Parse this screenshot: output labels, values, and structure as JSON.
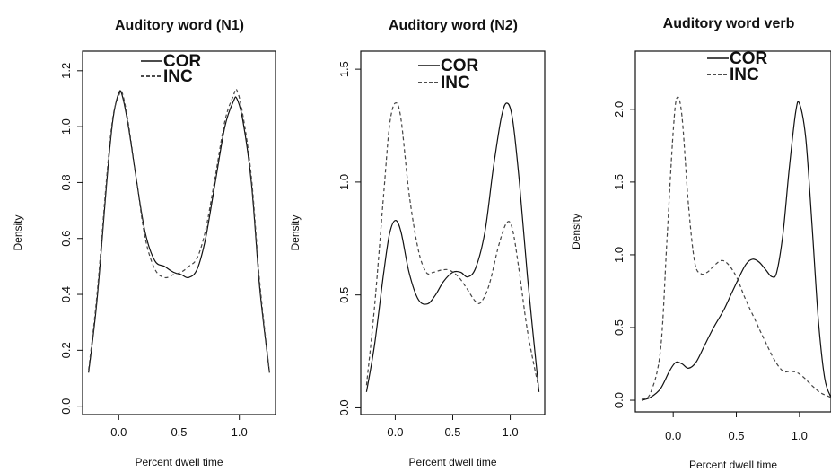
{
  "chart_data": [
    {
      "type": "line",
      "title": "Auditory word (N1)",
      "xlabel": "Percent dwell time",
      "ylabel": "Density",
      "xlim": [
        -0.3,
        1.3
      ],
      "ylim": [
        -0.03,
        1.27
      ],
      "xticks": [
        0.0,
        0.5,
        1.0
      ],
      "xtick_labels": [
        "0.0",
        "0.5",
        "1.0"
      ],
      "yticks": [
        0.0,
        0.2,
        0.4,
        0.6,
        0.8,
        1.0,
        1.2
      ],
      "ytick_labels": [
        "0.0",
        "0.2",
        "0.4",
        "0.6",
        "0.8",
        "1.0",
        "1.2"
      ],
      "grid": false,
      "legend_position": "top-center",
      "series": [
        {
          "name": "COR",
          "style": "solid",
          "color": "#111111",
          "x": [
            -0.25,
            -0.18,
            -0.1,
            -0.05,
            0.0,
            0.03,
            0.08,
            0.15,
            0.22,
            0.3,
            0.38,
            0.45,
            0.52,
            0.58,
            0.65,
            0.72,
            0.8,
            0.88,
            0.95,
            0.98,
            1.03,
            1.1,
            1.17,
            1.25
          ],
          "y": [
            0.12,
            0.38,
            0.8,
            1.02,
            1.12,
            1.11,
            1.0,
            0.8,
            0.62,
            0.52,
            0.5,
            0.48,
            0.47,
            0.46,
            0.49,
            0.6,
            0.8,
            1.0,
            1.09,
            1.1,
            1.02,
            0.8,
            0.42,
            0.12
          ]
        },
        {
          "name": "INC",
          "style": "dashed",
          "color": "#444444",
          "x": [
            -0.25,
            -0.18,
            -0.1,
            -0.05,
            0.0,
            0.03,
            0.08,
            0.15,
            0.22,
            0.3,
            0.38,
            0.45,
            0.52,
            0.58,
            0.65,
            0.72,
            0.8,
            0.88,
            0.95,
            0.98,
            1.03,
            1.1,
            1.17,
            1.25
          ],
          "y": [
            0.13,
            0.4,
            0.82,
            1.03,
            1.11,
            1.12,
            1.01,
            0.8,
            0.6,
            0.49,
            0.46,
            0.47,
            0.48,
            0.5,
            0.53,
            0.63,
            0.82,
            1.02,
            1.11,
            1.13,
            1.04,
            0.82,
            0.44,
            0.12
          ]
        }
      ]
    },
    {
      "type": "line",
      "title": "Auditory word (N2)",
      "xlabel": "Percent dwell time",
      "ylabel": "Density",
      "xlim": [
        -0.3,
        1.3
      ],
      "ylim": [
        -0.03,
        1.58
      ],
      "xticks": [
        0.0,
        0.5,
        1.0
      ],
      "xtick_labels": [
        "0.0",
        "0.5",
        "1.0"
      ],
      "yticks": [
        0.0,
        0.5,
        1.0,
        1.5
      ],
      "ytick_labels": [
        "0.0",
        "0.5",
        "1.0",
        "1.5"
      ],
      "grid": false,
      "legend_position": "top-center",
      "series": [
        {
          "name": "COR",
          "style": "solid",
          "color": "#111111",
          "x": [
            -0.25,
            -0.18,
            -0.1,
            -0.05,
            0.0,
            0.05,
            0.12,
            0.2,
            0.28,
            0.35,
            0.42,
            0.5,
            0.57,
            0.63,
            0.7,
            0.78,
            0.85,
            0.92,
            0.97,
            1.02,
            1.08,
            1.15,
            1.25
          ],
          "y": [
            0.07,
            0.28,
            0.6,
            0.77,
            0.83,
            0.78,
            0.6,
            0.48,
            0.46,
            0.5,
            0.56,
            0.6,
            0.6,
            0.58,
            0.62,
            0.78,
            1.05,
            1.28,
            1.35,
            1.28,
            1.0,
            0.58,
            0.07
          ]
        },
        {
          "name": "INC",
          "style": "dashed",
          "color": "#444444",
          "x": [
            -0.25,
            -0.18,
            -0.1,
            -0.05,
            0.0,
            0.05,
            0.12,
            0.2,
            0.27,
            0.33,
            0.4,
            0.47,
            0.55,
            0.62,
            0.7,
            0.75,
            0.82,
            0.9,
            0.97,
            1.02,
            1.08,
            1.15,
            1.25
          ],
          "y": [
            0.1,
            0.45,
            0.95,
            1.25,
            1.35,
            1.28,
            0.95,
            0.7,
            0.6,
            0.6,
            0.61,
            0.61,
            0.58,
            0.53,
            0.47,
            0.47,
            0.55,
            0.72,
            0.82,
            0.79,
            0.6,
            0.34,
            0.08
          ]
        }
      ]
    },
    {
      "type": "line",
      "title": "Auditory word verb",
      "xlabel": "Percent dwell time",
      "ylabel": "Density",
      "xlim": [
        -0.3,
        1.25
      ],
      "ylim": [
        -0.08,
        2.4
      ],
      "xticks": [
        0.0,
        0.5,
        1.0
      ],
      "xtick_labels": [
        "0.0",
        "0.5",
        "1.0"
      ],
      "yticks": [
        0.0,
        0.5,
        1.0,
        1.5,
        2.0
      ],
      "ytick_labels": [
        "0.0",
        "0.5",
        "1.0",
        "1.5",
        "2.0"
      ],
      "grid": false,
      "legend_position": "top-center",
      "series": [
        {
          "name": "COR",
          "style": "solid",
          "color": "#111111",
          "x": [
            -0.25,
            -0.18,
            -0.1,
            -0.03,
            0.02,
            0.07,
            0.12,
            0.18,
            0.25,
            0.32,
            0.4,
            0.47,
            0.53,
            0.58,
            0.63,
            0.68,
            0.73,
            0.78,
            0.82,
            0.87,
            0.92,
            0.97,
            1.0,
            1.05,
            1.1,
            1.15,
            1.2,
            1.25
          ],
          "y": [
            0.0,
            0.02,
            0.08,
            0.2,
            0.26,
            0.25,
            0.22,
            0.26,
            0.38,
            0.5,
            0.62,
            0.75,
            0.86,
            0.94,
            0.97,
            0.95,
            0.9,
            0.85,
            0.88,
            1.15,
            1.6,
            1.98,
            2.04,
            1.8,
            1.2,
            0.55,
            0.15,
            0.02
          ]
        },
        {
          "name": "INC",
          "style": "dashed",
          "color": "#444444",
          "x": [
            -0.25,
            -0.18,
            -0.1,
            -0.05,
            0.0,
            0.03,
            0.07,
            0.12,
            0.17,
            0.22,
            0.27,
            0.33,
            0.38,
            0.43,
            0.5,
            0.57,
            0.65,
            0.72,
            0.8,
            0.87,
            0.93,
            0.98,
            1.03,
            1.1,
            1.17,
            1.25
          ],
          "y": [
            0.01,
            0.05,
            0.35,
            1.1,
            1.85,
            2.08,
            1.95,
            1.35,
            0.95,
            0.87,
            0.88,
            0.93,
            0.96,
            0.94,
            0.85,
            0.7,
            0.55,
            0.42,
            0.28,
            0.2,
            0.2,
            0.19,
            0.16,
            0.1,
            0.05,
            0.02
          ]
        }
      ]
    }
  ]
}
